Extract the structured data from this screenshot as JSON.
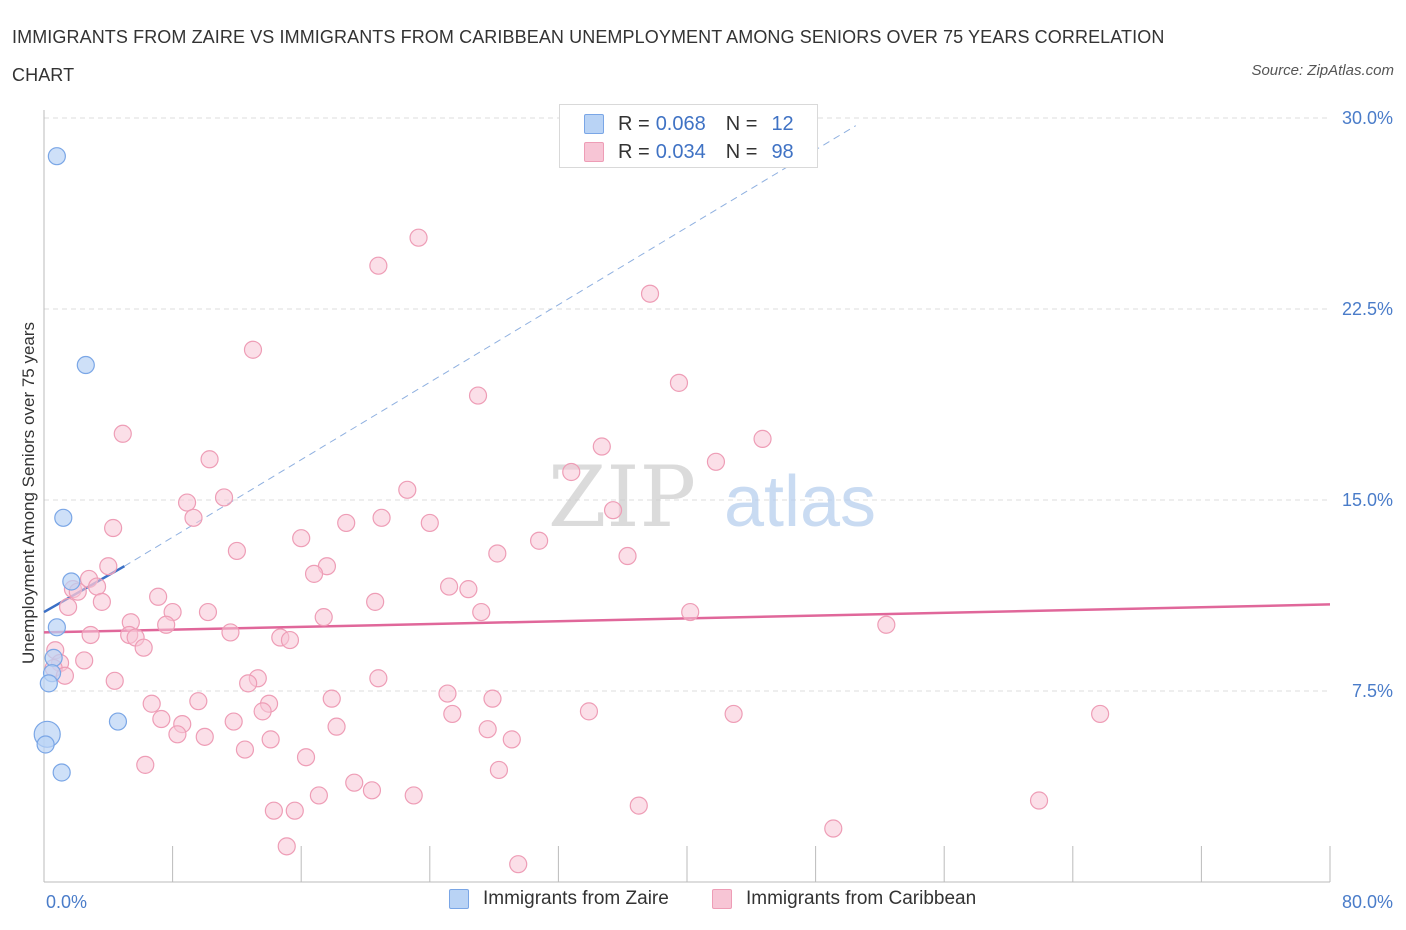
{
  "title": "IMMIGRANTS FROM ZAIRE VS IMMIGRANTS FROM CARIBBEAN UNEMPLOYMENT AMONG SENIORS OVER 75 YEARS CORRELATION CHART",
  "source": "Source: ZipAtlas.com",
  "watermark": {
    "zip": "ZIP",
    "atlas": "atlas"
  },
  "legend_top": {
    "rows": [
      {
        "r_label": "R =",
        "r_value": "0.068",
        "n_label": "N =",
        "n_value": "12"
      },
      {
        "r_label": "R =",
        "r_value": "0.034",
        "n_label": "N =",
        "n_value": "98"
      }
    ]
  },
  "legend_bottom": {
    "zaire": "Immigrants from Zaire",
    "caribbean": "Immigrants from Caribbean"
  },
  "colors": {
    "zaire_fill": "#b9d3f5",
    "zaire_stroke": "#7aa6e6",
    "zaire_line": "#3a6fc6",
    "caribbean_fill": "#f7c5d5",
    "caribbean_stroke": "#ee9db6",
    "caribbean_line": "#e0679a",
    "grid": "#dddddd",
    "tick_text": "#4a7cc9"
  },
  "chart_data": {
    "type": "scatter",
    "title": "IMMIGRANTS FROM ZAIRE VS IMMIGRANTS FROM CARIBBEAN UNEMPLOYMENT AMONG SENIORS OVER 75 YEARS CORRELATION CHART",
    "xlabel": "",
    "ylabel": "Unemployment Among Seniors over 75 years",
    "xlim": [
      0,
      80
    ],
    "ylim": [
      0,
      30
    ],
    "x_tick_labels": [
      "0.0%",
      "80.0%"
    ],
    "y_ticks": [
      {
        "value": 7.5,
        "label": "7.5%"
      },
      {
        "value": 15,
        "label": "15.0%"
      },
      {
        "value": 22.5,
        "label": "22.5%"
      },
      {
        "value": 30,
        "label": "30.0%"
      }
    ],
    "grid": true,
    "legend_position": "top-center",
    "series": [
      {
        "name": "Immigrants from Zaire",
        "points": [
          [
            0.8,
            28.5
          ],
          [
            2.6,
            20.3
          ],
          [
            1.2,
            14.3
          ],
          [
            1.7,
            11.8
          ],
          [
            0.8,
            10.0
          ],
          [
            0.6,
            8.8
          ],
          [
            0.5,
            8.2
          ],
          [
            0.3,
            7.8
          ],
          [
            4.6,
            6.3
          ],
          [
            0.2,
            5.8
          ],
          [
            0.1,
            5.4
          ],
          [
            1.1,
            4.3
          ]
        ],
        "trend": {
          "x": [
            0,
            5
          ],
          "y": [
            10.6,
            12.4
          ],
          "extended": {
            "x": [
              5,
              50.5
            ],
            "y": [
              12.4,
              29.7
            ]
          }
        }
      },
      {
        "name": "Immigrants from Caribbean",
        "points": [
          [
            23.3,
            25.3
          ],
          [
            20.8,
            24.2
          ],
          [
            37.7,
            23.1
          ],
          [
            13.0,
            20.9
          ],
          [
            27.0,
            19.1
          ],
          [
            39.5,
            19.6
          ],
          [
            4.9,
            17.6
          ],
          [
            44.7,
            17.4
          ],
          [
            34.7,
            17.1
          ],
          [
            10.3,
            16.6
          ],
          [
            41.8,
            16.5
          ],
          [
            32.8,
            16.1
          ],
          [
            22.6,
            15.4
          ],
          [
            8.9,
            14.9
          ],
          [
            11.2,
            15.1
          ],
          [
            35.4,
            14.6
          ],
          [
            4.3,
            13.9
          ],
          [
            9.3,
            14.3
          ],
          [
            21.0,
            14.3
          ],
          [
            18.8,
            14.1
          ],
          [
            24.0,
            14.1
          ],
          [
            16.0,
            13.5
          ],
          [
            30.8,
            13.4
          ],
          [
            12.0,
            13.0
          ],
          [
            28.2,
            12.9
          ],
          [
            36.3,
            12.8
          ],
          [
            4.0,
            12.4
          ],
          [
            17.6,
            12.4
          ],
          [
            16.8,
            12.1
          ],
          [
            2.8,
            11.9
          ],
          [
            3.3,
            11.6
          ],
          [
            25.2,
            11.6
          ],
          [
            26.4,
            11.5
          ],
          [
            1.8,
            11.5
          ],
          [
            2.1,
            11.4
          ],
          [
            3.6,
            11.0
          ],
          [
            7.1,
            11.2
          ],
          [
            20.6,
            11.0
          ],
          [
            1.5,
            10.8
          ],
          [
            8.0,
            10.6
          ],
          [
            10.2,
            10.6
          ],
          [
            27.2,
            10.6
          ],
          [
            40.2,
            10.6
          ],
          [
            17.4,
            10.4
          ],
          [
            5.4,
            10.2
          ],
          [
            7.6,
            10.1
          ],
          [
            52.4,
            10.1
          ],
          [
            5.3,
            9.7
          ],
          [
            2.9,
            9.7
          ],
          [
            11.6,
            9.8
          ],
          [
            14.7,
            9.6
          ],
          [
            15.3,
            9.5
          ],
          [
            5.7,
            9.6
          ],
          [
            6.2,
            9.2
          ],
          [
            0.7,
            9.1
          ],
          [
            1.0,
            8.6
          ],
          [
            2.5,
            8.7
          ],
          [
            0.6,
            8.4
          ],
          [
            1.3,
            8.1
          ],
          [
            4.4,
            7.9
          ],
          [
            13.3,
            8.0
          ],
          [
            20.8,
            8.0
          ],
          [
            12.7,
            7.8
          ],
          [
            25.1,
            7.4
          ],
          [
            17.9,
            7.2
          ],
          [
            27.9,
            7.2
          ],
          [
            9.6,
            7.1
          ],
          [
            6.7,
            7.0
          ],
          [
            14.0,
            7.0
          ],
          [
            13.6,
            6.7
          ],
          [
            33.9,
            6.7
          ],
          [
            42.9,
            6.6
          ],
          [
            65.7,
            6.6
          ],
          [
            7.3,
            6.4
          ],
          [
            25.4,
            6.6
          ],
          [
            11.8,
            6.3
          ],
          [
            8.6,
            6.2
          ],
          [
            18.2,
            6.1
          ],
          [
            27.6,
            6.0
          ],
          [
            8.3,
            5.8
          ],
          [
            10.0,
            5.7
          ],
          [
            14.1,
            5.6
          ],
          [
            29.1,
            5.6
          ],
          [
            12.5,
            5.2
          ],
          [
            16.3,
            4.9
          ],
          [
            6.3,
            4.6
          ],
          [
            28.3,
            4.4
          ],
          [
            19.3,
            3.9
          ],
          [
            20.4,
            3.6
          ],
          [
            17.1,
            3.4
          ],
          [
            23.0,
            3.4
          ],
          [
            61.9,
            3.2
          ],
          [
            37.0,
            3.0
          ],
          [
            14.3,
            2.8
          ],
          [
            15.6,
            2.8
          ],
          [
            49.1,
            2.1
          ],
          [
            15.1,
            1.4
          ],
          [
            29.5,
            0.7
          ]
        ],
        "trend": {
          "x": [
            0,
            80
          ],
          "y": [
            9.8,
            10.9
          ]
        }
      }
    ]
  }
}
